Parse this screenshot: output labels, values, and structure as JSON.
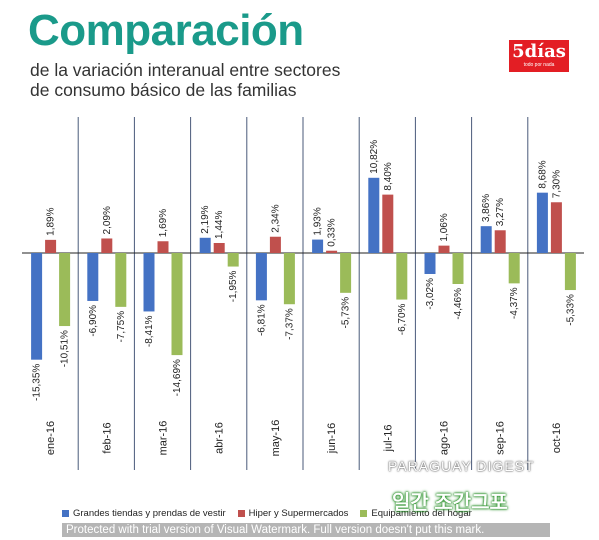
{
  "header": {
    "title": "Comparación",
    "subtitle_line1": "de la variación interanual entre sectores",
    "subtitle_line2": "de consumo básico de las familias",
    "logo_main": "5días",
    "logo_small": "todo por nada"
  },
  "colors": {
    "series1": "#4472c4",
    "series2": "#c0504d",
    "series3": "#9bbb59",
    "title": "#1a9a8a"
  },
  "chart_data": {
    "type": "bar",
    "title": "Comparación",
    "subtitle": "de la variación interanual entre sectores de consumo básico de las familias",
    "categories": [
      "ene-16",
      "feb-16",
      "mar-16",
      "abr-16",
      "may-16",
      "jun-16",
      "jul-16",
      "ago-16",
      "sep-16",
      "oct-16"
    ],
    "series": [
      {
        "name": "Grandes tiendas y prendas de vestir",
        "values": [
          -15.35,
          -6.9,
          -8.41,
          2.19,
          -6.81,
          1.93,
          10.82,
          -3.02,
          3.86,
          8.68
        ],
        "labels": [
          "-15,35%",
          "-6,90%",
          "-8,41%",
          "2,19%",
          "-6,81%",
          "1,93%",
          "10,82%",
          "-3,02%",
          "3,86%",
          "8,68%"
        ]
      },
      {
        "name": "Hiper y Supermercados",
        "values": [
          1.89,
          2.09,
          1.69,
          1.44,
          2.34,
          0.33,
          8.4,
          1.06,
          3.27,
          7.3
        ],
        "labels": [
          "1,89%",
          "2,09%",
          "1,69%",
          "1,44%",
          "2,34%",
          "0,33%",
          "8,40%",
          "1,06%",
          "3,27%",
          "7,30%"
        ]
      },
      {
        "name": "Equipamiento del hogar",
        "values": [
          -10.51,
          -7.75,
          -14.69,
          -1.95,
          -7.37,
          -5.73,
          -6.7,
          -4.46,
          -4.37,
          -5.33
        ],
        "labels": [
          "-10,51%",
          "-7,75%",
          "-14,69%",
          "-1,95%",
          "-7,37%",
          "-5,73%",
          "-6,70%",
          "-4,46%",
          "-4,37%",
          "-5,33%"
        ]
      }
    ],
    "ylim": [
      -17,
      15
    ],
    "grid": "vertical separators between categories",
    "legend": "bottom"
  },
  "legend": {
    "series1": "Grandes tiendas y prendas de vestir",
    "series2": "Hiper y Supermercados",
    "series3": "Equipamiento del hogar"
  },
  "overlay": {
    "watermark_bar": "Protected with trial version of Visual Watermark. Full version doesn't put this mark.",
    "watermark_text": "PARAGUAY DIGEST",
    "watermark_korean": "일간 조간그포"
  }
}
